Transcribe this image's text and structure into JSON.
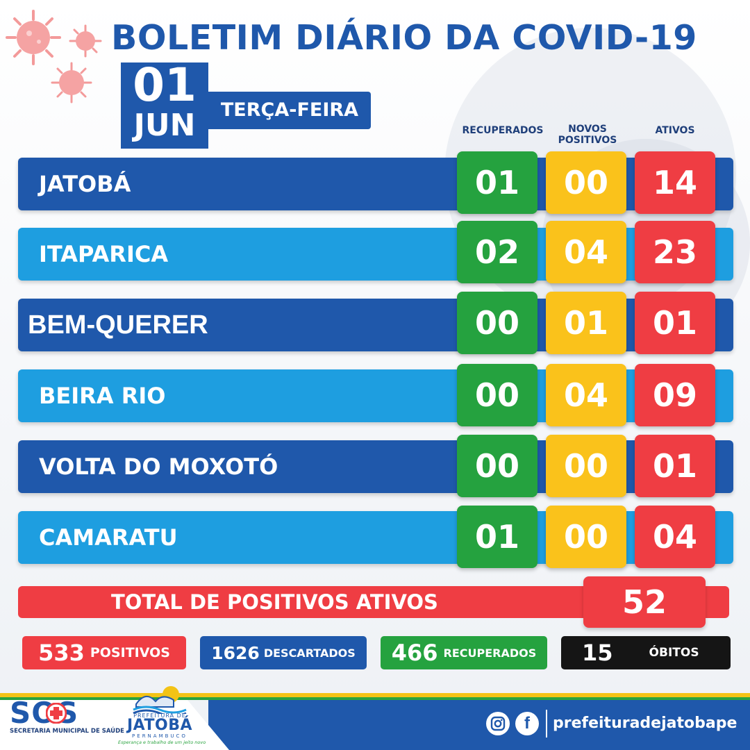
{
  "header": {
    "title": "BOLETIM DIÁRIO DA COVID-19",
    "date_day": "01",
    "date_month": "JUN",
    "weekday": "TERÇA-FEIRA"
  },
  "columns": {
    "recuperados": "RECUPERADOS",
    "novos_line1": "NOVOS",
    "novos_line2": "POSITIVOS",
    "ativos": "ATIVOS"
  },
  "rows": [
    {
      "name": "JATOBÁ",
      "recuperados": "01",
      "novos": "00",
      "ativos": "14"
    },
    {
      "name": "ITAPARICA",
      "recuperados": "02",
      "novos": "04",
      "ativos": "23"
    },
    {
      "name": "BEM-QUERER",
      "recuperados": "00",
      "novos": "01",
      "ativos": "01"
    },
    {
      "name": "BEIRA RIO",
      "recuperados": "00",
      "novos": "04",
      "ativos": "09"
    },
    {
      "name": "VOLTA DO MOXOTÓ",
      "recuperados": "00",
      "novos": "00",
      "ativos": "01"
    },
    {
      "name": "CAMARATU",
      "recuperados": "01",
      "novos": "00",
      "ativos": "04"
    }
  ],
  "total": {
    "label": "TOTAL DE POSITIVOS ATIVOS",
    "value": "52"
  },
  "stats": {
    "positivos": {
      "value": "533",
      "label": "POSITIVOS"
    },
    "descartados": {
      "value": "1626",
      "label": "DESCARTADOS"
    },
    "recuperados": {
      "value": "466",
      "label": "RECUPERADOS"
    },
    "obitos": {
      "value": "15",
      "label": "ÓBITOS"
    }
  },
  "footer": {
    "sos_logo": "SOS",
    "sos_subtitle": "SECRETARIA MUNICIPAL DE SAÚDE",
    "prefeitura_de": "PREFEITURA DE",
    "prefeitura_name": "JATOBÁ",
    "prefeitura_state": "PERNAMBUCO",
    "prefeitura_slogan": "Esperança e trabalho de um jeito novo",
    "instagram_icon": "instagram-icon",
    "facebook_icon": "facebook-icon",
    "social_handle": "prefeituradejatobape"
  },
  "colors": {
    "brand_blue": "#1f58ab",
    "light_blue": "#1e9ee0",
    "green": "#25a23f",
    "yellow": "#fac21b",
    "red": "#ef3d43",
    "black": "#151515"
  }
}
